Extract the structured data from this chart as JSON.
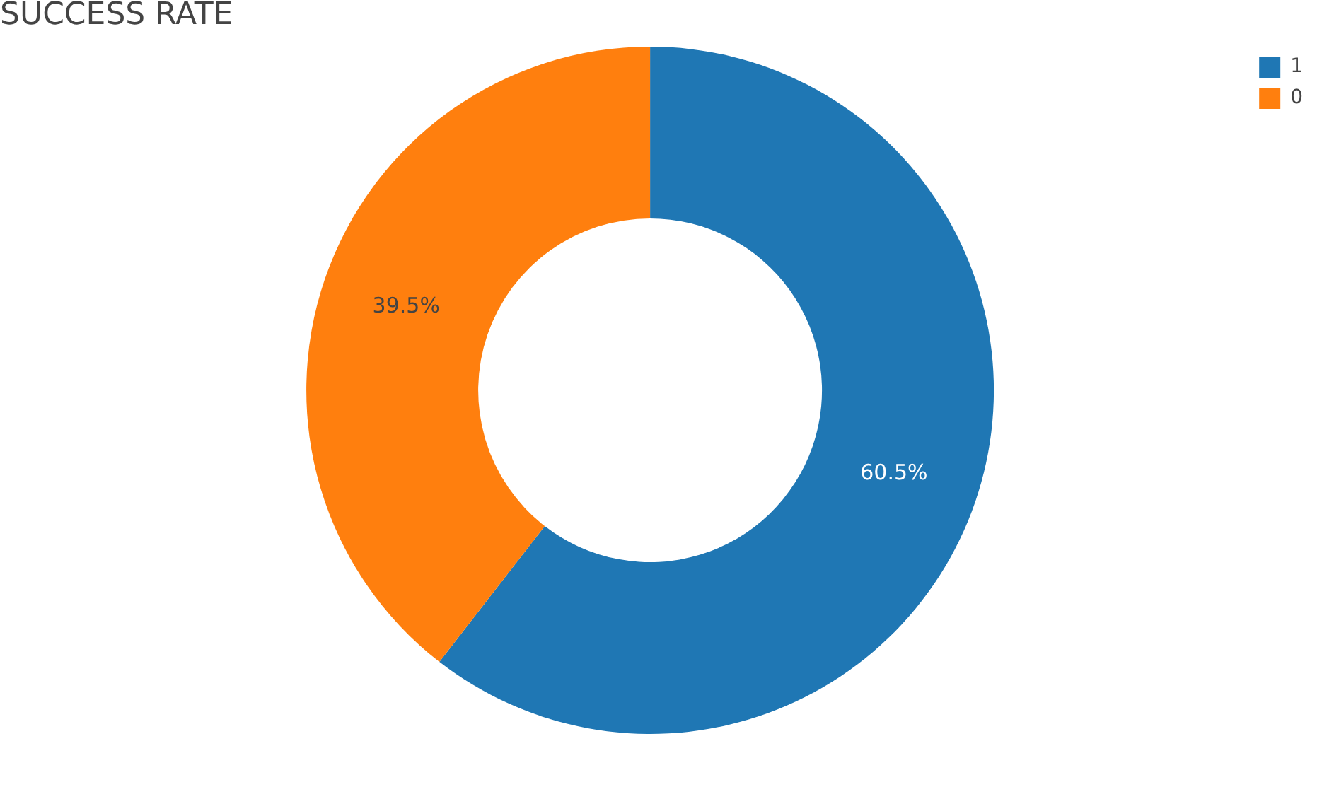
{
  "chart_data": {
    "type": "donut",
    "title": "SUCCESS RATE",
    "categories": [
      "1",
      "0"
    ],
    "values": [
      60.5,
      39.5
    ],
    "colors": [
      "#1f77b4",
      "#ff7f0e"
    ],
    "value_labels": [
      "60.5%",
      "39.5%"
    ],
    "legend": "top right"
  }
}
